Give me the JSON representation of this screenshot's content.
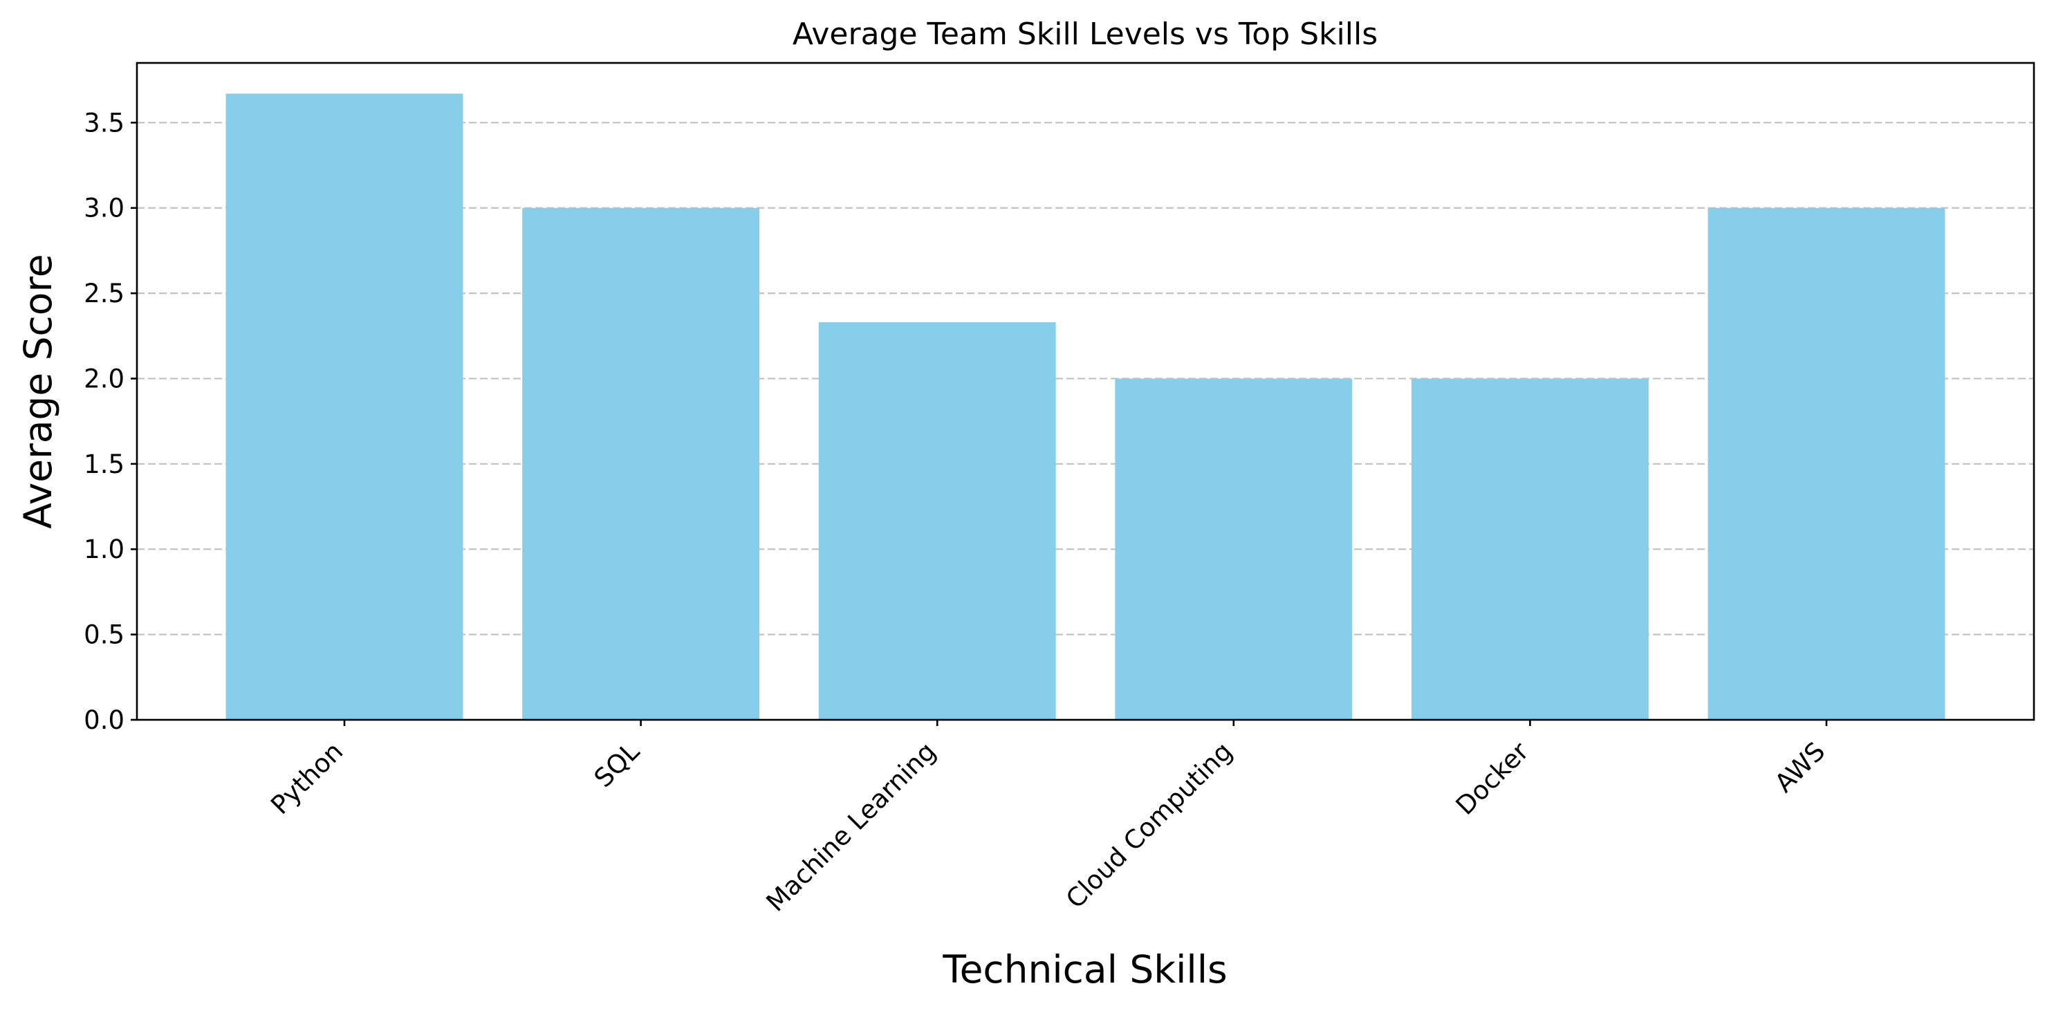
{
  "chart_data": {
    "type": "bar",
    "title": "Average Team Skill Levels vs Top Skills",
    "xlabel": "Technical Skills",
    "ylabel": "Average Score",
    "categories": [
      "Python",
      "SQL",
      "Machine Learning",
      "Cloud Computing",
      "Docker",
      "AWS"
    ],
    "values": [
      3.67,
      3.0,
      2.33,
      2.0,
      2.0,
      3.0
    ],
    "ylim": [
      0,
      3.85
    ],
    "yticks": [
      "0.0",
      "0.5",
      "1.0",
      "1.5",
      "2.0",
      "2.5",
      "3.0",
      "3.5"
    ],
    "grid": "y-axis, dashed",
    "bar_color": "#87CEEB",
    "legend": "none"
  }
}
